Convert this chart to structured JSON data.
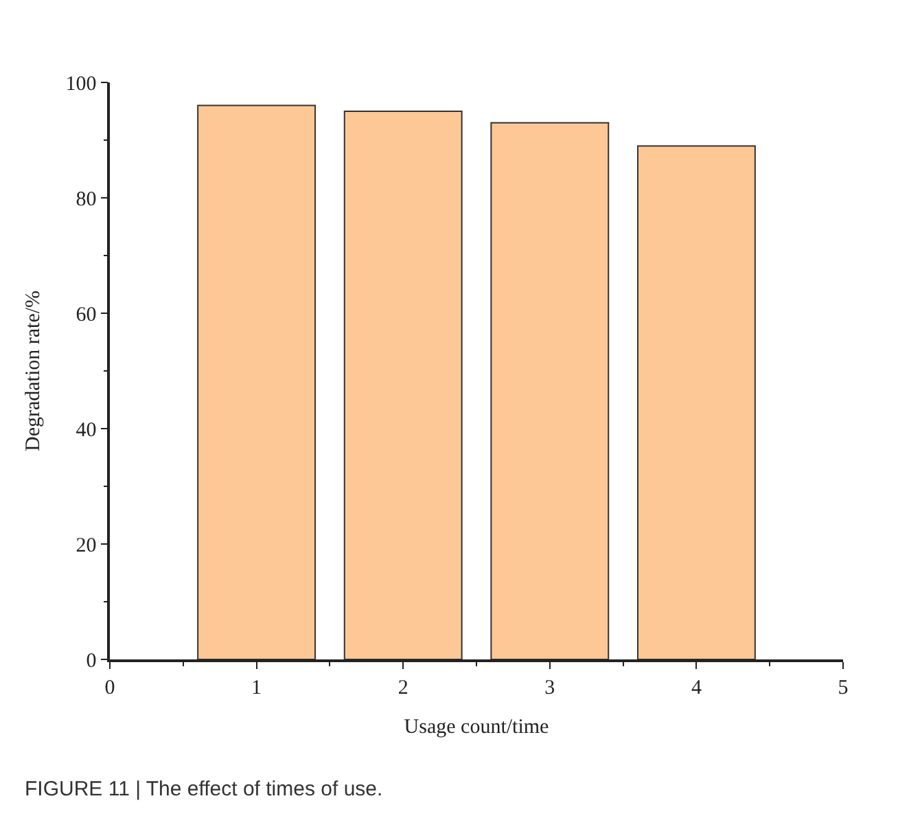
{
  "chart_data": {
    "type": "bar",
    "xlabel": "Usage count/time",
    "ylabel": "Degradation rate/%",
    "x": [
      1,
      2,
      3,
      4
    ],
    "values": [
      96,
      95,
      93,
      89
    ],
    "color": "#fdc895",
    "xlim": [
      0,
      5
    ],
    "xticks": [
      0,
      1,
      2,
      3,
      4,
      5
    ],
    "ylim": [
      0,
      100
    ],
    "yticks": [
      0,
      20,
      40,
      60,
      80,
      100
    ],
    "annotations": [
      "FIGURE 11 | The effect of times of use."
    ]
  }
}
